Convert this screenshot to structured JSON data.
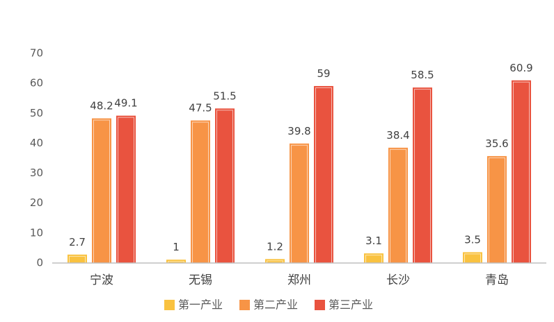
{
  "chart_data": {
    "type": "bar",
    "categories": [
      "宁波",
      "无锡",
      "郑州",
      "长沙",
      "青岛"
    ],
    "series": [
      {
        "name": "第一产业",
        "color": "#f9c240",
        "values": [
          2.7,
          1,
          1.2,
          3.1,
          3.5
        ]
      },
      {
        "name": "第二产业",
        "color": "#f79446",
        "values": [
          48.2,
          47.5,
          39.8,
          38.4,
          35.6
        ]
      },
      {
        "name": "第三产业",
        "color": "#e9533f",
        "values": [
          49.1,
          51.5,
          59,
          58.5,
          60.9
        ]
      }
    ],
    "ylim": [
      0,
      70
    ],
    "yticks": [
      0,
      10,
      20,
      30,
      40,
      50,
      60,
      70
    ],
    "grid": false,
    "legend": "bottom"
  }
}
